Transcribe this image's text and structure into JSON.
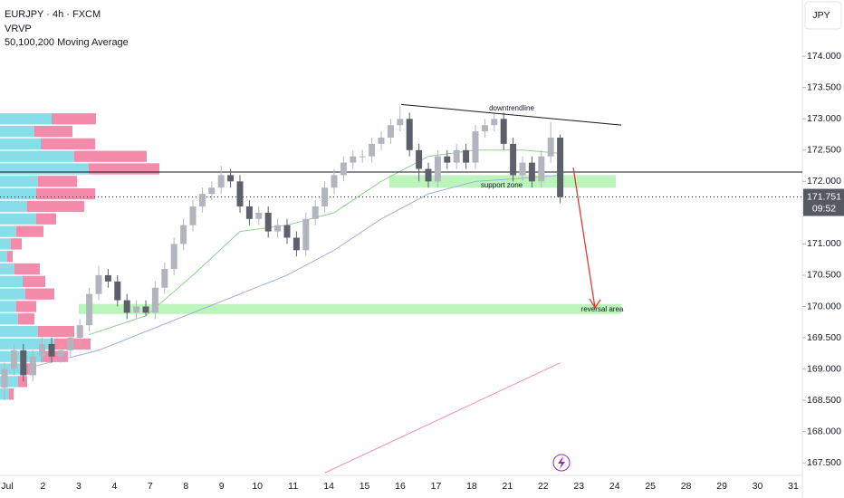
{
  "header": {
    "symbol": "EURJPY · 4h · FXCM",
    "indicator_1": "VRVP",
    "indicator_2": "50,100,200 Moving Average",
    "currency": "JPY"
  },
  "chart_data": {
    "type": "candlestick",
    "open": [
      168.7,
      169.0,
      169.3,
      168.9,
      169.2,
      169.4,
      169.2,
      169.3,
      169.5,
      169.7,
      170.2,
      170.5,
      170.4,
      170.1,
      169.9,
      170.0,
      169.9,
      170.3,
      170.6,
      171.0,
      171.3,
      171.6,
      171.8,
      171.9,
      172.1,
      172.0,
      171.6,
      171.4,
      171.5,
      171.2,
      171.3,
      171.1,
      170.9,
      171.4,
      171.6,
      171.9,
      172.1,
      172.3,
      172.4,
      172.4,
      172.6,
      172.7,
      172.9,
      173.0,
      172.5,
      172.2,
      172.0,
      172.4,
      172.3,
      172.5,
      172.3,
      172.8,
      172.9,
      173.0,
      172.6,
      172.1,
      172.3,
      172.0,
      172.4,
      172.7
    ],
    "high": [
      169.1,
      169.4,
      169.4,
      169.3,
      169.5,
      169.5,
      169.4,
      169.6,
      169.8,
      170.3,
      170.65,
      170.6,
      170.5,
      170.2,
      170.1,
      170.1,
      170.4,
      170.7,
      171.1,
      171.4,
      171.7,
      171.9,
      172.0,
      172.25,
      172.2,
      172.1,
      171.7,
      171.6,
      171.6,
      171.4,
      171.4,
      171.2,
      171.5,
      171.7,
      172.0,
      172.2,
      172.4,
      172.5,
      172.5,
      172.7,
      172.8,
      173.0,
      173.2,
      173.1,
      172.6,
      172.3,
      172.5,
      172.5,
      172.6,
      172.6,
      172.9,
      173.0,
      173.1,
      173.1,
      172.7,
      172.4,
      172.4,
      172.5,
      172.95,
      172.75
    ],
    "low": [
      168.5,
      168.9,
      168.8,
      168.8,
      169.1,
      169.1,
      169.1,
      169.2,
      169.4,
      169.6,
      170.1,
      170.3,
      170.0,
      169.8,
      169.8,
      169.85,
      169.8,
      170.2,
      170.5,
      170.9,
      171.2,
      171.5,
      171.7,
      171.8,
      171.9,
      171.5,
      171.3,
      171.3,
      171.1,
      171.1,
      171.0,
      170.8,
      170.8,
      171.3,
      171.5,
      171.8,
      172.0,
      172.2,
      172.3,
      172.3,
      172.5,
      172.6,
      172.8,
      172.4,
      172.0,
      171.9,
      171.9,
      172.2,
      172.2,
      172.2,
      172.2,
      172.7,
      172.8,
      172.5,
      172.0,
      172.0,
      171.9,
      171.9,
      172.3,
      171.65
    ],
    "close": [
      169.0,
      169.3,
      168.9,
      169.2,
      169.4,
      169.2,
      169.3,
      169.5,
      169.7,
      170.2,
      170.5,
      170.4,
      170.1,
      169.9,
      170.0,
      169.9,
      170.3,
      170.6,
      171.0,
      171.3,
      171.6,
      171.8,
      171.9,
      172.1,
      172.0,
      171.6,
      171.4,
      171.5,
      171.2,
      171.3,
      171.1,
      170.9,
      171.4,
      171.6,
      171.9,
      172.1,
      172.3,
      172.4,
      172.4,
      172.6,
      172.7,
      172.9,
      173.0,
      172.5,
      172.2,
      172.0,
      172.4,
      172.3,
      172.5,
      172.3,
      172.8,
      172.9,
      173.0,
      172.6,
      172.1,
      172.3,
      172.0,
      172.4,
      172.7,
      171.75
    ],
    "up_color": "#b2b5be",
    "down_color": "#5d606b",
    "ylim": [
      167.3,
      174.9
    ],
    "yticks": [
      {
        "value": 167.5,
        "label": "167.500"
      },
      {
        "value": 168,
        "label": "168.000"
      },
      {
        "value": 168.5,
        "label": "168.500"
      },
      {
        "value": 169,
        "label": "169.000"
      },
      {
        "value": 169.5,
        "label": "169.500"
      },
      {
        "value": 170,
        "label": "170.000"
      },
      {
        "value": 170.5,
        "label": "170.500"
      },
      {
        "value": 171,
        "label": "171.000"
      },
      {
        "value": 171.5,
        "label": "171.500"
      },
      {
        "value": 172,
        "label": "172.000"
      },
      {
        "value": 172.5,
        "label": "172.500"
      },
      {
        "value": 173,
        "label": "173.000"
      },
      {
        "value": 173.5,
        "label": "173.500"
      },
      {
        "value": 174,
        "label": "174.000"
      }
    ],
    "x_labels": [
      "Jul",
      "2",
      "3",
      "4",
      "7",
      "8",
      "9",
      "10",
      "11",
      "14",
      "15",
      "16",
      "17",
      "18",
      "21",
      "22",
      "23",
      "24",
      "25",
      "28",
      "29",
      "30",
      "31"
    ],
    "volume_profile": {
      "levels": [
        173.0,
        172.8,
        172.6,
        172.4,
        172.2,
        172.0,
        171.8,
        171.6,
        171.4,
        171.2,
        171.0,
        170.8,
        170.6,
        170.4,
        170.2,
        170.0,
        169.8,
        169.6,
        169.4,
        169.2,
        169.0,
        168.8,
        168.6
      ],
      "up": [
        57,
        38,
        45,
        82,
        98,
        42,
        40,
        30,
        40,
        18,
        12,
        8,
        16,
        25,
        28,
        18,
        20,
        42,
        60,
        45,
        25,
        20,
        10
      ],
      "down": [
        49,
        42,
        60,
        80,
        78,
        43,
        65,
        63,
        22,
        30,
        12,
        6,
        28,
        25,
        32,
        22,
        18,
        40,
        40,
        30,
        15,
        10,
        5
      ],
      "up_color": "#5fd3e2",
      "down_color": "#f0648e"
    },
    "moving_averages": [
      {
        "color": "#8fd18f",
        "x": [
          9,
          15,
          20,
          25,
          30,
          35,
          40,
          45,
          50,
          55,
          59
        ],
        "values": [
          169.55,
          169.85,
          170.5,
          171.2,
          171.3,
          171.5,
          172.0,
          172.4,
          172.5,
          172.5,
          172.45
        ]
      },
      {
        "color": "#a6aede",
        "x": [
          2,
          10,
          20,
          30,
          35,
          40,
          45,
          50,
          55,
          59
        ],
        "values": [
          169.0,
          169.3,
          169.9,
          170.5,
          170.9,
          171.4,
          171.8,
          172.0,
          172.05,
          172.1
        ]
      },
      {
        "color": "#f48fb1",
        "x": [
          34,
          59
        ],
        "values": [
          167.34,
          169.1
        ]
      }
    ],
    "annotations": {
      "downtrendline": {
        "label": "downtrendline",
        "from": 173.23,
        "to": 172.9
      },
      "support_zone": {
        "label": "support zone",
        "low": 171.9,
        "high": 172.1
      },
      "reversal_area": {
        "label": "reversal area",
        "low": 169.88,
        "high": 170.04
      },
      "level_line": 172.15,
      "arrow": {
        "from": 172.22,
        "to": 169.98
      }
    },
    "last_price": 171.751,
    "countdown": "09:52"
  }
}
